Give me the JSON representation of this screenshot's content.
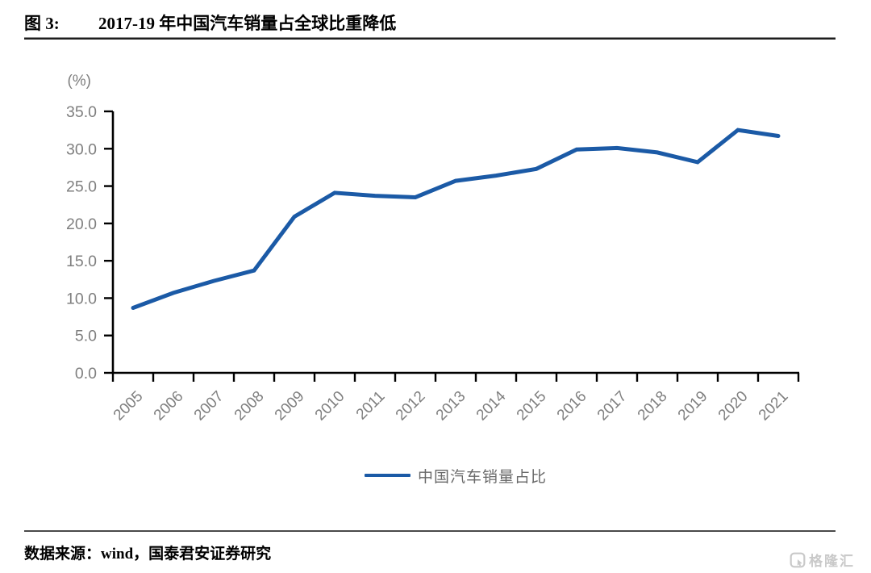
{
  "figure": {
    "label": "图 3:",
    "title": "2017-19 年中国汽车销量占全球比重降低"
  },
  "chart_data": {
    "type": "line",
    "title": "2017-19 年中国汽车销量占全球比重降低",
    "unit_label": "(%)",
    "xlabel": "",
    "ylabel": "(%)",
    "categories": [
      "2005",
      "2006",
      "2007",
      "2008",
      "2009",
      "2010",
      "2011",
      "2012",
      "2013",
      "2014",
      "2015",
      "2016",
      "2017",
      "2018",
      "2019",
      "2020",
      "2021"
    ],
    "series": [
      {
        "name": "中国汽车销量占比",
        "color": "#1B5AA6",
        "values": [
          8.7,
          10.7,
          12.3,
          13.7,
          20.9,
          24.1,
          23.7,
          23.5,
          25.7,
          26.4,
          27.3,
          29.9,
          30.1,
          29.5,
          28.2,
          32.5,
          31.7
        ]
      }
    ],
    "ylim": [
      0,
      35
    ],
    "yticks": [
      0,
      5,
      10,
      15,
      20,
      25,
      30,
      35
    ],
    "ytick_labels": [
      "0.0",
      "5.0",
      "10.0",
      "15.0",
      "20.0",
      "25.0",
      "30.0",
      "35.0"
    ],
    "grid": false,
    "legend_position": "bottom",
    "axis_color": "#000000",
    "tick_label_color": "#7f7f7f"
  },
  "legend": {
    "label": "中国汽车销量占比"
  },
  "footer": {
    "source": "数据来源：wind，国泰君安证券研究"
  },
  "watermark": {
    "icon": "gelonghui-logo",
    "text": "格隆汇"
  }
}
